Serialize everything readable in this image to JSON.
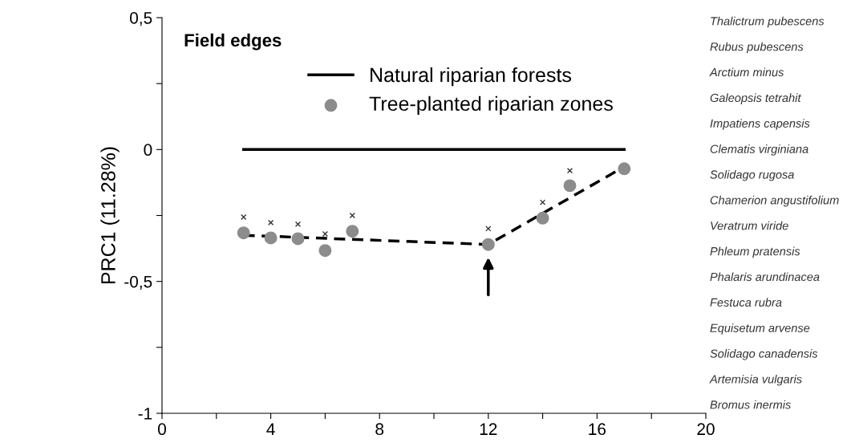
{
  "chart_data": {
    "type": "line",
    "title": "Field edges",
    "ylabel": "PRC1 (11.28%)",
    "xlim": [
      0,
      20
    ],
    "xticks": [
      0,
      {
        "value": 2,
        "label": null
      },
      4,
      {
        "value": 6,
        "label": null
      },
      8,
      {
        "value": 10,
        "label": null
      },
      12,
      {
        "value": 14,
        "label": null
      },
      16,
      {
        "value": 18,
        "label": null
      },
      20
    ],
    "ylim": [
      -1,
      0.5
    ],
    "yticks": [
      {
        "value": -1,
        "label": "-1"
      },
      {
        "value": -0.75,
        "label": null
      },
      {
        "value": -0.5,
        "label": "-0,5"
      },
      {
        "value": -0.25,
        "label": null
      },
      {
        "value": 0,
        "label": "0"
      },
      {
        "value": 0.25,
        "label": null
      },
      {
        "value": 0.5,
        "label": "0,5"
      }
    ],
    "grid": false,
    "legend": "top",
    "series": [
      {
        "name": "Natural riparian forests",
        "color": "#000000",
        "x": [
          3,
          17
        ],
        "values": [
          0,
          0
        ],
        "marker": "none",
        "line_style": "solid"
      },
      {
        "name": "Tree-planted riparian zones",
        "type": "scatter",
        "color": "#8c8c8c",
        "x": [
          3,
          4,
          5,
          6,
          7,
          12,
          14,
          15,
          17
        ],
        "values": [
          -0.316,
          -0.335,
          -0.338,
          -0.383,
          -0.31,
          -0.36,
          -0.26,
          -0.137,
          -0.073
        ],
        "marker": "circle"
      },
      {
        "type": "scatter",
        "color": "#333333",
        "x": [
          3,
          4,
          5,
          6,
          7,
          12,
          14,
          15
        ],
        "values": [
          -0.256,
          -0.277,
          -0.283,
          -0.32,
          -0.25,
          -0.3,
          -0.2,
          -0.08
        ],
        "marker": "cross"
      },
      {
        "color": "#000000",
        "x": [
          3,
          12,
          17
        ],
        "values": [
          -0.325,
          -0.36,
          -0.065
        ],
        "marker": "none",
        "line_style": "dashed"
      }
    ],
    "annotations": [
      "Thalictrum pubescens",
      "Rubus pubescens",
      "Arctium minus",
      "Galeopsis tetrahit",
      "Impatiens capensis",
      "Clematis virginiana",
      "Solidago rugosa",
      "Chamerion angustifolium",
      "Veratrum viride",
      "Phleum pratensis",
      "Phalaris arundinacea",
      "Festuca rubra",
      "Equisetum arvense",
      "Solidago canadensis",
      "Artemisia vulgaris",
      "Bromus inermis"
    ]
  }
}
